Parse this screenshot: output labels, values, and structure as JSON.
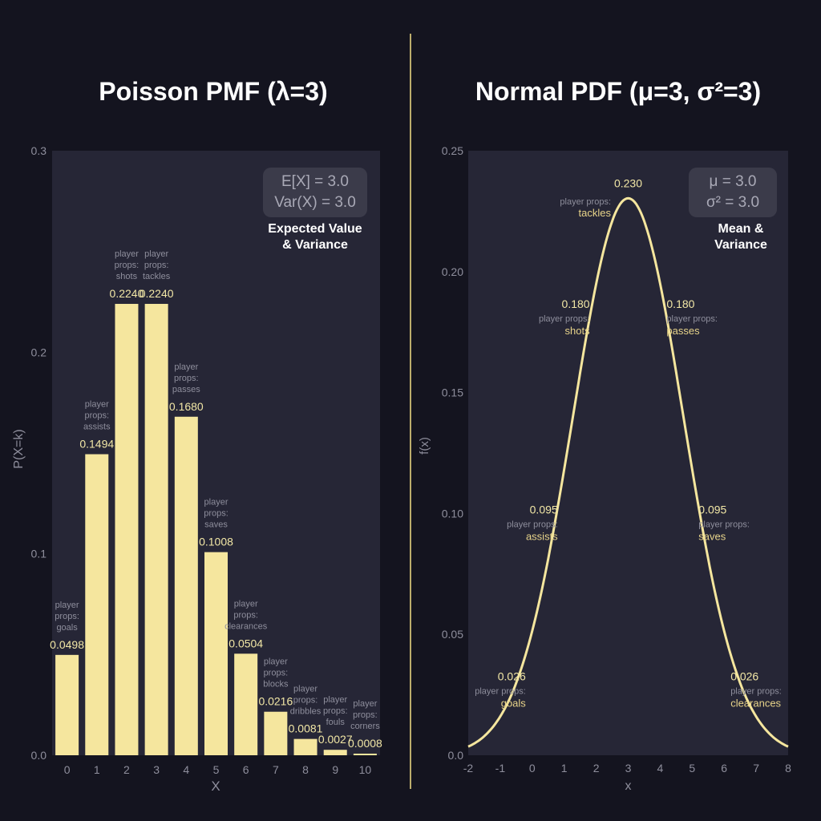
{
  "colors": {
    "background": "#14141f",
    "plot_bg": "#262636",
    "accent": "#f5e69e",
    "value_text": "#f2e7a6",
    "muted_text": "#8e8e9c",
    "prop_text": "#e8d48a"
  },
  "chart_data": [
    {
      "type": "bar",
      "title": "Poisson PMF (λ=3)",
      "xlabel": "X",
      "ylabel": "P(X=k)",
      "ylim": [
        0,
        0.3
      ],
      "yticks": [
        "0.0",
        "0.1",
        "0.2",
        "0.3"
      ],
      "categories": [
        "0",
        "1",
        "2",
        "3",
        "4",
        "5",
        "6",
        "7",
        "8",
        "9",
        "10"
      ],
      "values": [
        0.0498,
        0.1494,
        0.224,
        0.224,
        0.168,
        0.1008,
        0.0504,
        0.0216,
        0.0081,
        0.0027,
        0.0008
      ],
      "value_labels": [
        "0.0498",
        "0.1494",
        "0.2240",
        "0.2240",
        "0.1680",
        "0.1008",
        "0.0504",
        "0.0216",
        "0.0081",
        "0.0027",
        "0.0008"
      ],
      "annotations": [
        [
          "player",
          "props:",
          "goals"
        ],
        [
          "player",
          "props:",
          "assists"
        ],
        [
          "player",
          "props:",
          "shots"
        ],
        [
          "player",
          "props:",
          "tackles"
        ],
        [
          "player",
          "props:",
          "passes"
        ],
        [
          "player",
          "props:",
          "saves"
        ],
        [
          "player",
          "props:",
          "clearances"
        ],
        [
          "player",
          "props:",
          "blocks"
        ],
        [
          "player",
          "props:",
          "dribbles"
        ],
        [
          "player",
          "props:",
          "fouls"
        ],
        [
          "player",
          "props:",
          "corners"
        ]
      ],
      "stats_box": [
        "E[X] = 3.0",
        "Var(X) = 3.0"
      ],
      "stats_caption": [
        "Expected Value",
        "& Variance"
      ],
      "grid": false
    },
    {
      "type": "line",
      "title": "Normal PDF (μ=3, σ²=3)",
      "xlabel": "x",
      "ylabel": "f(x)",
      "xlim": [
        -2,
        8
      ],
      "ylim": [
        0,
        0.25
      ],
      "xticks": [
        "-2",
        "-1",
        "0",
        "1",
        "2",
        "3",
        "4",
        "5",
        "6",
        "7",
        "8"
      ],
      "yticks": [
        "0.0",
        "0.05",
        "0.10",
        "0.15",
        "0.20",
        "0.25"
      ],
      "mu": 3,
      "variance": 3,
      "points": [
        {
          "x": 3,
          "y": 0.23,
          "label": "0.230",
          "prop": "tackles"
        },
        {
          "x": 2,
          "y": 0.18,
          "label": "0.180",
          "prop": "shots"
        },
        {
          "x": 4,
          "y": 0.18,
          "label": "0.180",
          "prop": "passes"
        },
        {
          "x": 1,
          "y": 0.095,
          "label": "0.095",
          "prop": "assists"
        },
        {
          "x": 5,
          "y": 0.095,
          "label": "0.095",
          "prop": "saves"
        },
        {
          "x": 0,
          "y": 0.026,
          "label": "0.026",
          "prop": "goals"
        },
        {
          "x": 6,
          "y": 0.026,
          "label": "0.026",
          "prop": "clearances"
        }
      ],
      "prop_prefix": "player props:",
      "stats_box": [
        "μ = 3.0",
        "σ² = 3.0"
      ],
      "stats_caption": [
        "Mean &",
        "Variance"
      ],
      "grid": false
    }
  ]
}
